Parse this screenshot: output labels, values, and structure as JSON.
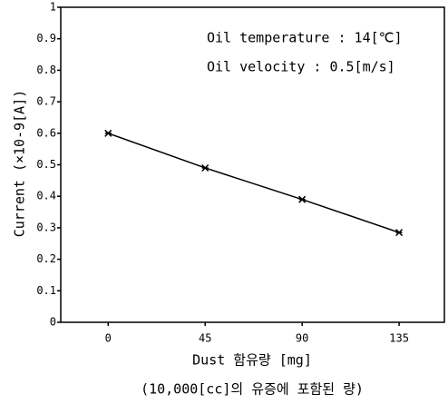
{
  "chart_data": {
    "type": "line",
    "xlabel": "Dust 함유량 [mg]",
    "xlabel_sub": "(10,000[cc]의 유증에 포함된 량)",
    "ylabel": "Current (×10-9[A])",
    "annotations": [
      "Oil temperature : 14[℃]",
      "Oil velocity : 0.5[m/s]"
    ],
    "x": [
      0,
      45,
      90,
      135
    ],
    "series": [
      {
        "name": null,
        "color": "#000000",
        "values": [
          0.6,
          0.49,
          0.39,
          0.285
        ]
      }
    ],
    "xlim": [
      -22,
      156
    ],
    "xticks": [
      0,
      45,
      90,
      135
    ],
    "ylim": [
      0,
      1
    ],
    "yticks": [
      0,
      0.1,
      0.2,
      0.3,
      0.4,
      0.5,
      0.6,
      0.7,
      0.8,
      0.9,
      1
    ],
    "grid": false
  }
}
